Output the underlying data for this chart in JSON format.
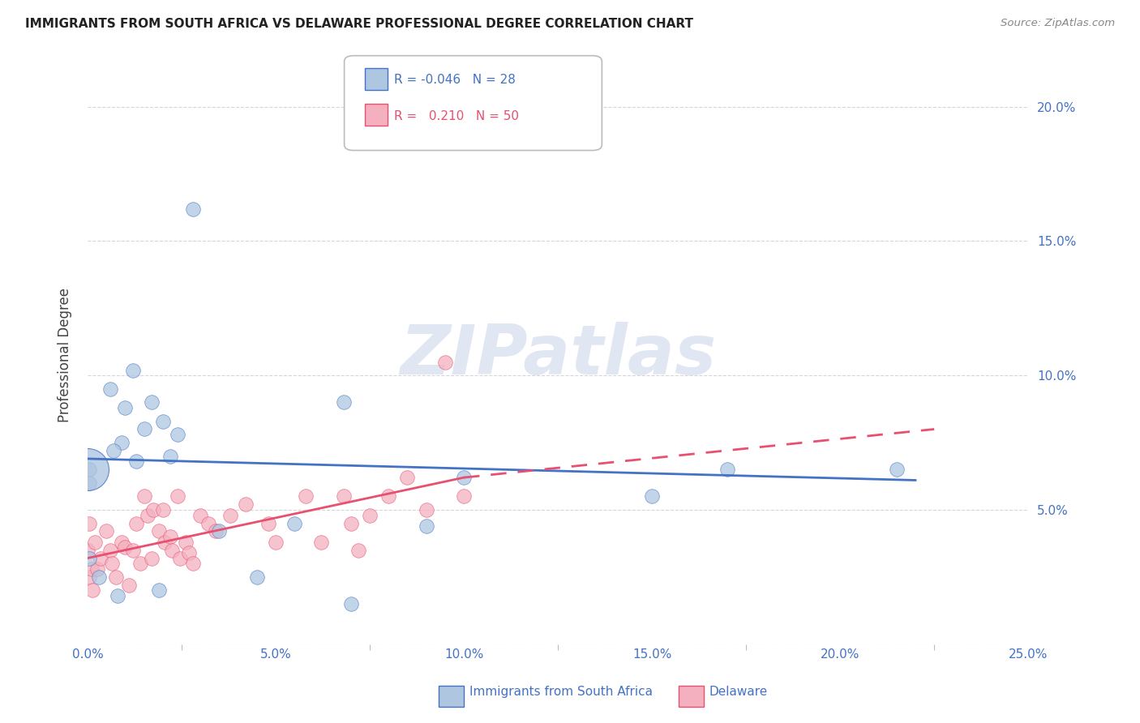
{
  "title": "IMMIGRANTS FROM SOUTH AFRICA VS DELAWARE PROFESSIONAL DEGREE CORRELATION CHART",
  "source": "Source: ZipAtlas.com",
  "ylabel": "Professional Degree",
  "xlim": [
    0.0,
    25.0
  ],
  "ylim": [
    0.0,
    21.5
  ],
  "blue_label": "Immigrants from South Africa",
  "pink_label": "Delaware",
  "blue_R": "-0.046",
  "blue_N": "28",
  "pink_R": "0.210",
  "pink_N": "50",
  "blue_color": "#aec6e0",
  "pink_color": "#f4b0bf",
  "blue_line_color": "#4472c4",
  "pink_line_color": "#e85070",
  "title_color": "#222222",
  "axis_color": "#4472c4",
  "grid_color": "#cccccc",
  "blue_scatter_x": [
    1.2,
    0.6,
    1.0,
    1.7,
    2.0,
    1.5,
    2.4,
    2.2,
    0.9,
    0.7,
    1.3,
    0.05,
    0.05,
    5.5,
    10.0,
    15.0,
    17.0,
    21.5,
    9.0,
    3.5,
    6.8,
    0.05,
    0.3,
    0.8,
    1.9,
    2.8,
    4.5,
    7.0
  ],
  "blue_scatter_y": [
    10.2,
    9.5,
    8.8,
    9.0,
    8.3,
    8.0,
    7.8,
    7.0,
    7.5,
    7.2,
    6.8,
    6.5,
    6.0,
    4.5,
    6.2,
    5.5,
    6.5,
    6.5,
    4.4,
    4.2,
    9.0,
    3.2,
    2.5,
    1.8,
    2.0,
    16.2,
    2.5,
    1.5
  ],
  "pink_scatter_x": [
    0.0,
    0.05,
    0.1,
    0.12,
    0.05,
    0.2,
    0.25,
    0.35,
    0.5,
    0.6,
    0.65,
    0.75,
    0.9,
    1.0,
    1.1,
    1.2,
    1.3,
    1.4,
    1.5,
    1.6,
    1.7,
    1.75,
    1.9,
    2.0,
    2.05,
    2.2,
    2.25,
    2.4,
    2.45,
    2.6,
    2.7,
    2.8,
    3.0,
    3.2,
    3.4,
    3.8,
    4.2,
    4.8,
    5.0,
    5.8,
    6.2,
    6.8,
    7.0,
    7.5,
    8.0,
    8.5,
    9.0,
    9.5,
    10.0,
    7.2
  ],
  "pink_scatter_y": [
    3.5,
    2.5,
    2.8,
    2.0,
    4.5,
    3.8,
    2.8,
    3.2,
    4.2,
    3.5,
    3.0,
    2.5,
    3.8,
    3.6,
    2.2,
    3.5,
    4.5,
    3.0,
    5.5,
    4.8,
    3.2,
    5.0,
    4.2,
    5.0,
    3.8,
    4.0,
    3.5,
    5.5,
    3.2,
    3.8,
    3.4,
    3.0,
    4.8,
    4.5,
    4.2,
    4.8,
    5.2,
    4.5,
    3.8,
    5.5,
    3.8,
    5.5,
    4.5,
    4.8,
    5.5,
    6.2,
    5.0,
    10.5,
    5.5,
    3.5
  ],
  "blue_large_x": 0.0,
  "blue_large_y": 6.5,
  "blue_line_x0": 0.0,
  "blue_line_x1": 22.0,
  "blue_line_y0": 6.9,
  "blue_line_y1": 6.1,
  "pink_solid_x0": 0.0,
  "pink_solid_x1": 10.0,
  "pink_solid_y0": 3.2,
  "pink_solid_y1": 6.2,
  "pink_dash_x0": 10.0,
  "pink_dash_x1": 22.5,
  "pink_dash_y0": 6.2,
  "pink_dash_y1": 8.0,
  "leg_blue_text": "R = -0.046   N = 28",
  "leg_pink_text": "R =   0.210   N = 50",
  "watermark": "ZIPatlas"
}
